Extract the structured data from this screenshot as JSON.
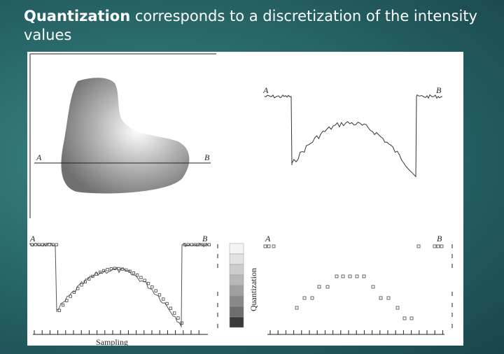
{
  "title": {
    "bold_word": "Quantization",
    "rest": " corresponds to a discretization of the intensity values"
  },
  "figure": {
    "label_a": "A",
    "label_b": "B",
    "label_a_top_left": "A",
    "label_b_top_left": "B",
    "label_a_top_right": "A",
    "label_b_top_right": "B",
    "label_a_bottom_left": "A",
    "label_b_bottom_left": "B",
    "label_a_bottom_right": "A",
    "label_b_bottom_right": "B",
    "sampling_label": "Sampling",
    "quantization_label": "Quantization",
    "gray_levels": [
      "#f4f4f4",
      "#e2e2e2",
      "#cdcdcd",
      "#b8b8b8",
      "#a0a0a0",
      "#888888",
      "#6e6e6e",
      "#3a3a3a"
    ]
  }
}
